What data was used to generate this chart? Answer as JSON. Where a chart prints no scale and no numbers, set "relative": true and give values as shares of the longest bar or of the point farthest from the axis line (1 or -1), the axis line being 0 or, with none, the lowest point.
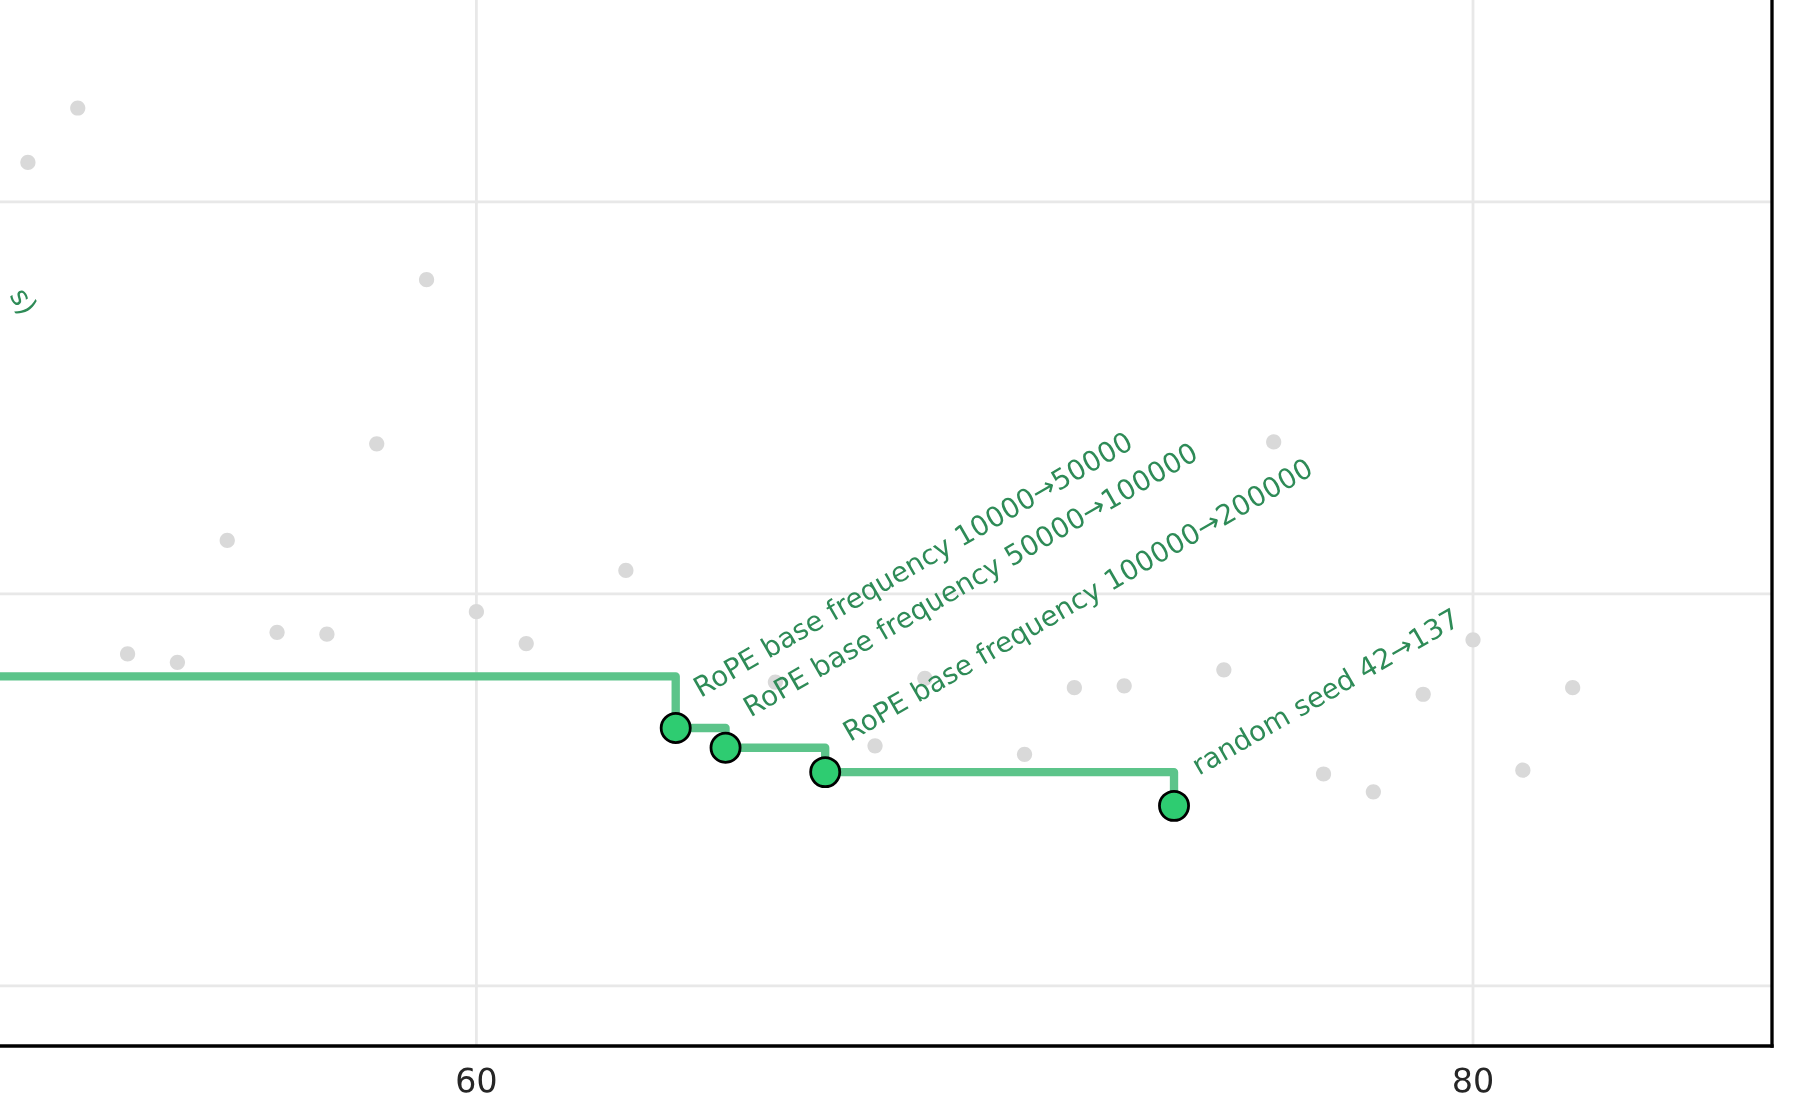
{
  "chart_data": {
    "type": "scatter",
    "relative": true,
    "xlim": [
      50.44,
      86.0
    ],
    "xticks": [
      60,
      80
    ],
    "grid": true,
    "tick_labels": "x",
    "series": [
      {
        "marker": "circle",
        "color": "#d9d9d9",
        "x": [
          52,
          51,
          59,
          58,
          55,
          63,
          60,
          53,
          54,
          56,
          57,
          61,
          66,
          68,
          69,
          70,
          71,
          72,
          73,
          75,
          76,
          77,
          78,
          79,
          80,
          81,
          82
        ],
        "values": [
          1.0,
          0.942,
          0.817,
          0.642,
          0.539,
          0.507,
          0.463,
          0.418,
          0.409,
          0.441,
          0.439,
          0.429,
          0.388,
          0.32,
          0.392,
          null,
          0.311,
          0.382,
          0.384,
          0.401,
          0.644,
          0.29,
          0.271,
          0.375,
          0.433,
          0.294,
          0.382
        ]
      },
      {
        "type": "step",
        "color": "#5cc48a",
        "marker": "none",
        "x": [
          50.44,
          64,
          65,
          67,
          74
        ],
        "values": [
          0.394,
          0.339,
          0.318,
          0.292,
          0.256
        ]
      },
      {
        "marker": "circle",
        "color": "#2ecc71",
        "x": [
          64,
          65,
          67,
          74
        ],
        "values": [
          0.339,
          0.318,
          0.292,
          0.256
        ]
      }
    ],
    "annotations": [
      {
        "text": "RoPE base frequency 10000→50000",
        "x": 64,
        "y": 0.339
      },
      {
        "text": "RoPE base frequency 50000→100000",
        "x": 65,
        "y": 0.318
      },
      {
        "text": "RoPE base frequency 100000→200000",
        "x": 67,
        "y": 0.292
      },
      {
        "text": "random seed 42→137",
        "x": 74,
        "y": 0.256
      },
      "s)"
    ]
  }
}
